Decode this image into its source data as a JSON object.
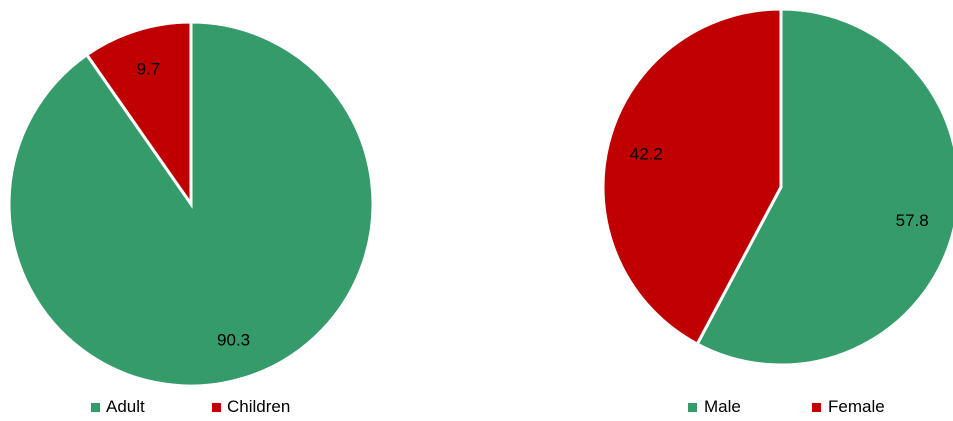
{
  "chart_data": [
    {
      "type": "pie",
      "categories": [
        "Adult",
        "Children"
      ],
      "values": [
        90.3,
        9.7
      ],
      "colors": [
        "#359b6a",
        "#c00000"
      ],
      "data_labels": [
        "90.3",
        "9.7"
      ],
      "legend": {
        "position": "bottom",
        "entries": [
          "Adult",
          "Children"
        ]
      }
    },
    {
      "type": "pie",
      "categories": [
        "Male",
        "Female"
      ],
      "values": [
        57.8,
        42.2
      ],
      "colors": [
        "#359b6a",
        "#c00000"
      ],
      "data_labels": [
        "57.8",
        "42.2"
      ],
      "legend": {
        "position": "bottom",
        "entries": [
          "Male",
          "Female"
        ]
      }
    }
  ]
}
